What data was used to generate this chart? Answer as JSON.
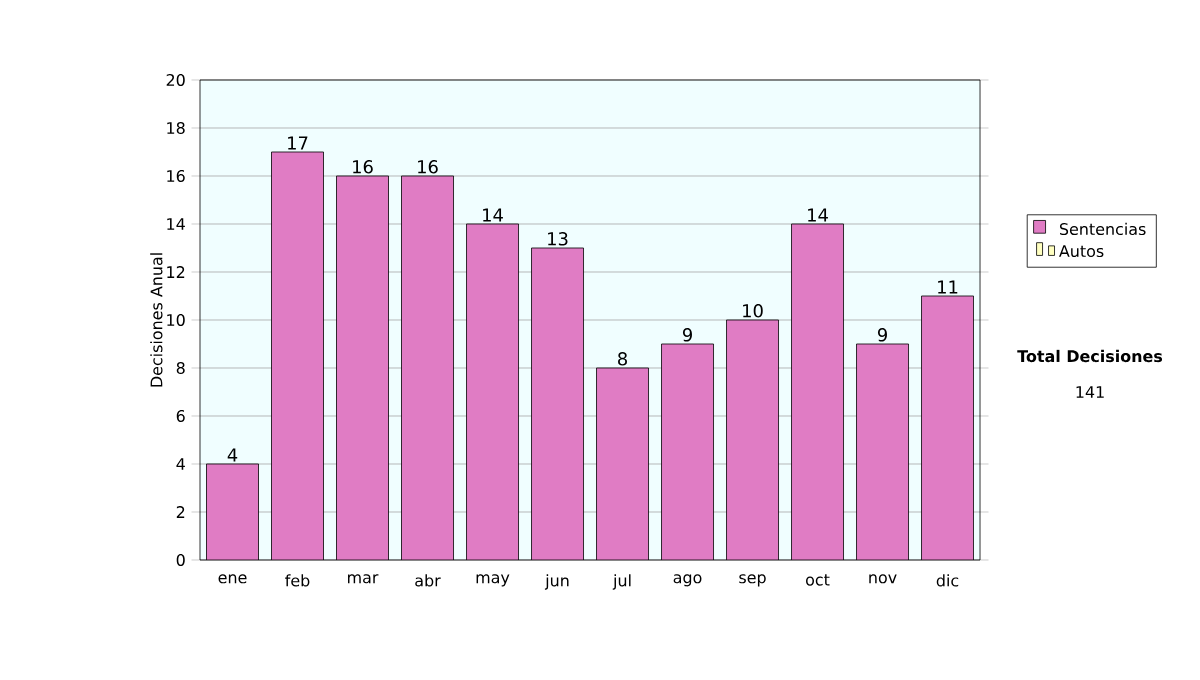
{
  "chart_data": {
    "type": "bar",
    "ylabel": "Decisiones Anual",
    "categories": [
      "ene",
      "feb",
      "mar",
      "abr",
      "may",
      "jun",
      "jul",
      "ago",
      "sep",
      "oct",
      "nov",
      "dic"
    ],
    "series": [
      {
        "name": "Sentencias",
        "color": "#e07cc4",
        "values": [
          4,
          17,
          16,
          16,
          14,
          13,
          8,
          9,
          10,
          14,
          9,
          11
        ]
      },
      {
        "name": "Autos",
        "color": "#ffffc0",
        "values": [
          null,
          null,
          null,
          null,
          null,
          null,
          null,
          null,
          null,
          null,
          null,
          null
        ]
      }
    ],
    "stacked": true,
    "ylim": [
      0,
      20
    ],
    "yticks": [
      0,
      2,
      4,
      6,
      8,
      10,
      12,
      14,
      16,
      18,
      20
    ],
    "grid": "y",
    "legend": "right",
    "data_labels": true,
    "annotations": [
      "**Total Decisiones**",
      "141"
    ]
  }
}
